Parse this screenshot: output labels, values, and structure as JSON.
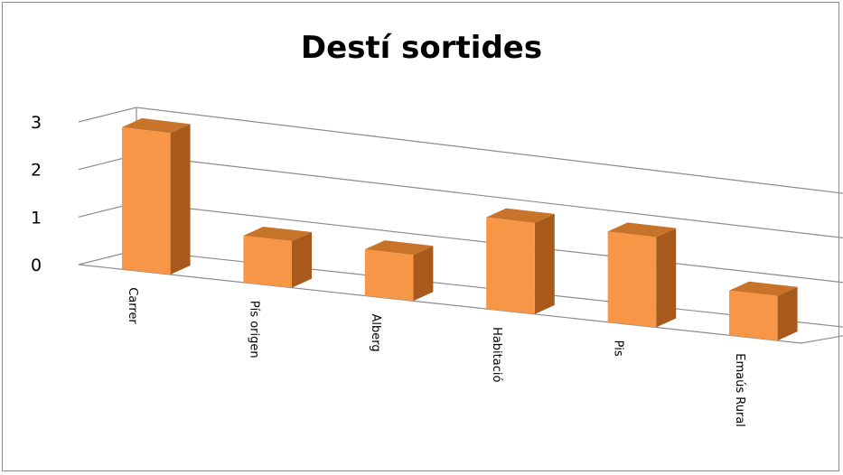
{
  "chart_data": {
    "type": "bar",
    "title": "Destí sortides",
    "categories": [
      "Carrer",
      "Pís origen",
      "Alberg",
      "Habitació",
      "Pis",
      "Emaús Rural"
    ],
    "values": [
      3,
      1,
      1,
      2,
      2,
      1
    ],
    "ylim": [
      0,
      3
    ],
    "yticks": [
      "0",
      "1",
      "2",
      "3"
    ],
    "grid": true,
    "legend": "none",
    "style": "3d-column"
  },
  "colors": {
    "bar_front": "#f79646",
    "bar_top": "#c8732a",
    "bar_side": "#a85a1c",
    "grid": "#8c8c8c"
  }
}
